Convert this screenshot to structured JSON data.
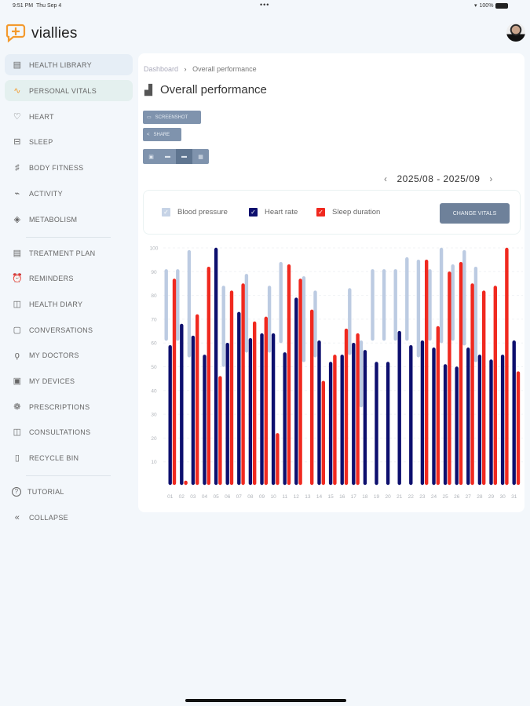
{
  "status_bar": {
    "time": "9:51 PM",
    "date": "Thu Sep 4",
    "battery": "100%"
  },
  "brand": {
    "name": "viallies",
    "accent": "#f39a2e"
  },
  "sidebar": {
    "items": [
      {
        "label": "HEALTH LIBRARY",
        "icon": "archive-icon"
      },
      {
        "label": "PERSONAL VITALS",
        "icon": "pulse-icon"
      },
      {
        "label": "HEART",
        "icon": "heart-icon"
      },
      {
        "label": "SLEEP",
        "icon": "bed-icon"
      },
      {
        "label": "BODY FITNESS",
        "icon": "fitness-icon"
      },
      {
        "label": "ACTIVITY",
        "icon": "activity-icon"
      },
      {
        "label": "METABOLISM",
        "icon": "metabolism-icon"
      },
      {
        "label": "TREATMENT PLAN",
        "icon": "treatment-icon"
      },
      {
        "label": "REMINDERS",
        "icon": "alarm-icon"
      },
      {
        "label": "HEALTH DIARY",
        "icon": "book-icon"
      },
      {
        "label": "CONVERSATIONS",
        "icon": "chat-icon"
      },
      {
        "label": "MY DOCTORS",
        "icon": "stethoscope-icon"
      },
      {
        "label": "MY DEVICES",
        "icon": "devices-icon"
      },
      {
        "label": "PRESCRIPTIONS",
        "icon": "pills-icon"
      },
      {
        "label": "CONSULTATIONS",
        "icon": "book-open-icon"
      },
      {
        "label": "RECYCLE BIN",
        "icon": "trash-icon"
      },
      {
        "label": "TUTORIAL",
        "icon": "help-icon"
      },
      {
        "label": "COLLAPSE",
        "icon": "chevrons-left-icon"
      }
    ]
  },
  "breadcrumb": {
    "root": "Dashboard",
    "current": "Overall performance"
  },
  "page_title": "Overall performance",
  "toolbar": {
    "screenshot": "SCREENSHOT",
    "share": "SHARE"
  },
  "date_range": "2025/08 - 2025/09",
  "legend": {
    "change_vitals": "CHANGE VITALS"
  },
  "chart_data": {
    "type": "bar",
    "ylim": [
      0,
      100
    ],
    "yticks": [
      10,
      20,
      30,
      40,
      50,
      60,
      70,
      80,
      90,
      100
    ],
    "grid": true,
    "categories": [
      "01",
      "02",
      "03",
      "04",
      "05",
      "06",
      "07",
      "08",
      "09",
      "10",
      "11",
      "12",
      "13",
      "14",
      "15",
      "16",
      "17",
      "18",
      "19",
      "20",
      "21",
      "22",
      "23",
      "24",
      "25",
      "26",
      "27",
      "28",
      "29",
      "30",
      "31"
    ],
    "series": [
      {
        "name": "Blood pressure",
        "color": "#bccbe2",
        "kind": "range",
        "values": [
          [
            61,
            91
          ],
          [
            61,
            91
          ],
          [
            54,
            99
          ],
          null,
          null,
          [
            50,
            84
          ],
          null,
          [
            56,
            89
          ],
          null,
          [
            56,
            84
          ],
          [
            60,
            94
          ],
          null,
          [
            52,
            88
          ],
          [
            54,
            82
          ],
          null,
          null,
          [
            55,
            83
          ],
          [
            33,
            61
          ],
          [
            61,
            91
          ],
          [
            61,
            91
          ],
          [
            61,
            91
          ],
          [
            61,
            96
          ],
          [
            54,
            95
          ],
          [
            61,
            91
          ],
          [
            60,
            100
          ],
          [
            61,
            93
          ],
          [
            59,
            99
          ],
          [
            52,
            92
          ],
          null,
          null,
          null
        ]
      },
      {
        "name": "Heart rate",
        "color": "#0d0f6e",
        "values": [
          59,
          68,
          63,
          55,
          100,
          60,
          73,
          62,
          64,
          64,
          56,
          79,
          null,
          61,
          52,
          55,
          60,
          57,
          52,
          52,
          65,
          59,
          61,
          58,
          51,
          50,
          58,
          55,
          53,
          55,
          61
        ]
      },
      {
        "name": "Sleep duration",
        "color": "#f0291f",
        "values": [
          87,
          2,
          72,
          92,
          46,
          82,
          85,
          69,
          71,
          22,
          93,
          87,
          74,
          44,
          55,
          66,
          64,
          null,
          null,
          null,
          null,
          null,
          95,
          67,
          90,
          94,
          85,
          82,
          84,
          100,
          48
        ]
      }
    ]
  }
}
